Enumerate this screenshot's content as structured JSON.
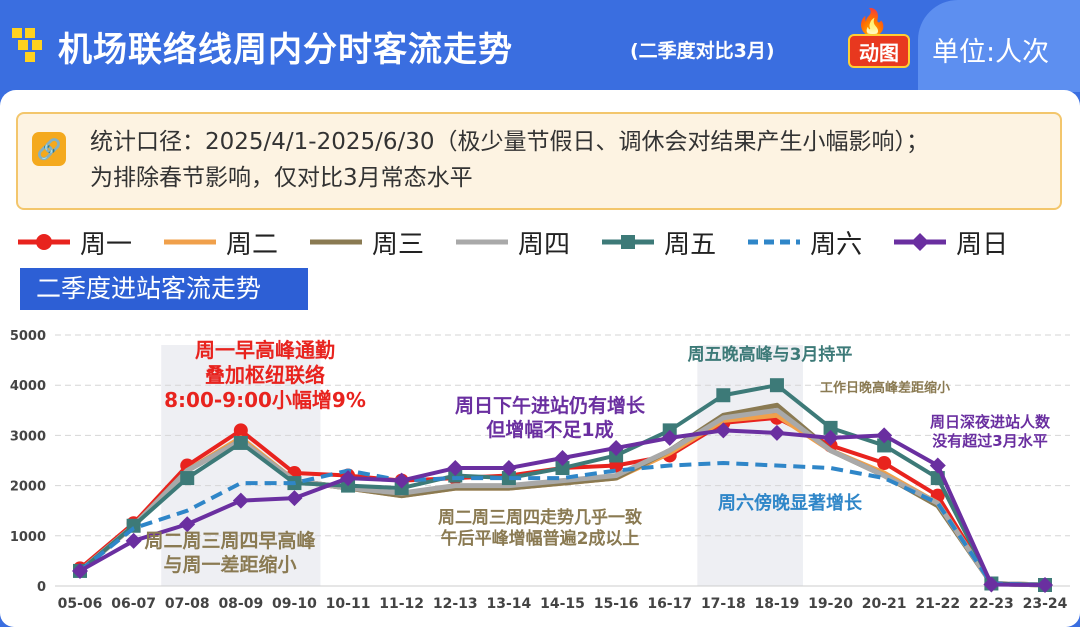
{
  "header": {
    "title": "机场联络线周内分时客流走势",
    "subtitle": "(二季度对比3月)",
    "badge": "动图",
    "unit": "单位:人次"
  },
  "note": {
    "line1": "统计口径：2025/4/1-2025/6/30（极少量节假日、调休会对结果产生小幅影响）；",
    "line2": "为排除春节影响，仅对比3月常态水平"
  },
  "section_label": "二季度进站客流走势",
  "colors": {
    "mon": "#e8231e",
    "tue": "#f0a04b",
    "wed": "#8a7a52",
    "thu": "#a9a9a9",
    "fri": "#3d7a78",
    "sat": "#2f86c8",
    "sun": "#6a2fa0"
  },
  "chart_data": {
    "type": "line",
    "title": "二季度进站客流走势",
    "xlabel": "",
    "ylabel": "人次",
    "ylim": [
      0,
      5000
    ],
    "yticks": [
      "0",
      "1000",
      "2000",
      "3000",
      "4000",
      "5000"
    ],
    "categories": [
      "05-06",
      "06-07",
      "07-08",
      "08-09",
      "09-10",
      "10-11",
      "11-12",
      "12-13",
      "13-14",
      "14-15",
      "15-16",
      "16-17",
      "17-18",
      "18-19",
      "19-20",
      "20-21",
      "21-22",
      "22-23",
      "23-24"
    ],
    "series": [
      {
        "name": "周一",
        "key": "mon",
        "style": "circle",
        "values": [
          350,
          1250,
          2400,
          3100,
          2250,
          2200,
          2100,
          2150,
          2200,
          2350,
          2400,
          2600,
          3250,
          3350,
          2800,
          2450,
          1800,
          50,
          20
        ]
      },
      {
        "name": "周二",
        "key": "tue",
        "style": "line",
        "values": [
          300,
          1200,
          2300,
          2950,
          2100,
          1950,
          1800,
          1950,
          1950,
          2050,
          2150,
          2650,
          3300,
          3400,
          2700,
          2250,
          1650,
          50,
          20
        ]
      },
      {
        "name": "周三",
        "key": "wed",
        "style": "line",
        "values": [
          300,
          1200,
          2300,
          2900,
          2100,
          1950,
          1800,
          1950,
          1950,
          2050,
          2150,
          2700,
          3400,
          3600,
          2700,
          2200,
          1600,
          50,
          20
        ]
      },
      {
        "name": "周四",
        "key": "thu",
        "style": "line",
        "values": [
          300,
          1200,
          2300,
          2900,
          2100,
          1950,
          1850,
          2000,
          2000,
          2100,
          2200,
          2700,
          3350,
          3500,
          2700,
          2200,
          1650,
          50,
          20
        ]
      },
      {
        "name": "周五",
        "key": "fri",
        "style": "square",
        "values": [
          300,
          1200,
          2150,
          2850,
          2050,
          2000,
          1950,
          2200,
          2150,
          2350,
          2600,
          3100,
          3800,
          4000,
          3150,
          2800,
          2150,
          50,
          20
        ]
      },
      {
        "name": "周六",
        "key": "sat",
        "style": "dashed",
        "values": [
          300,
          1150,
          1500,
          2050,
          2050,
          2300,
          2100,
          2150,
          2150,
          2150,
          2300,
          2400,
          2450,
          2400,
          2350,
          2150,
          1650,
          50,
          20
        ]
      },
      {
        "name": "周日",
        "key": "sun",
        "style": "diamond",
        "values": [
          300,
          900,
          1230,
          1700,
          1750,
          2150,
          2100,
          2350,
          2350,
          2550,
          2750,
          2950,
          3100,
          3050,
          2950,
          3000,
          2400,
          30,
          20
        ]
      }
    ],
    "highlight_ranges": [
      [
        "07-08",
        "09-10"
      ],
      [
        "17-18",
        "18-19"
      ]
    ],
    "annotations": [
      {
        "text": "周一早高峰通勤\n叠加枢纽联络\n8:00-9:00小幅增9%",
        "color": "mon"
      },
      {
        "text": "周日下午进站仍有增长\n但增幅不足1成",
        "color": "sun"
      },
      {
        "text": "周五晚高峰与3月持平",
        "color": "fri"
      },
      {
        "text": "工作日晚高峰差距缩小",
        "color": "wed"
      },
      {
        "text": "周日深夜进站人数\n没有超过3月水平",
        "color": "sun"
      },
      {
        "text": "周二周三周四早高峰\n与周一差距缩小",
        "color": "wed"
      },
      {
        "text": "周二周三周四走势几乎一致\n午后平峰增幅普遍2成以上",
        "color": "wed"
      },
      {
        "text": "周六傍晚显著增长",
        "color": "sat"
      }
    ],
    "legend_position": "top"
  }
}
